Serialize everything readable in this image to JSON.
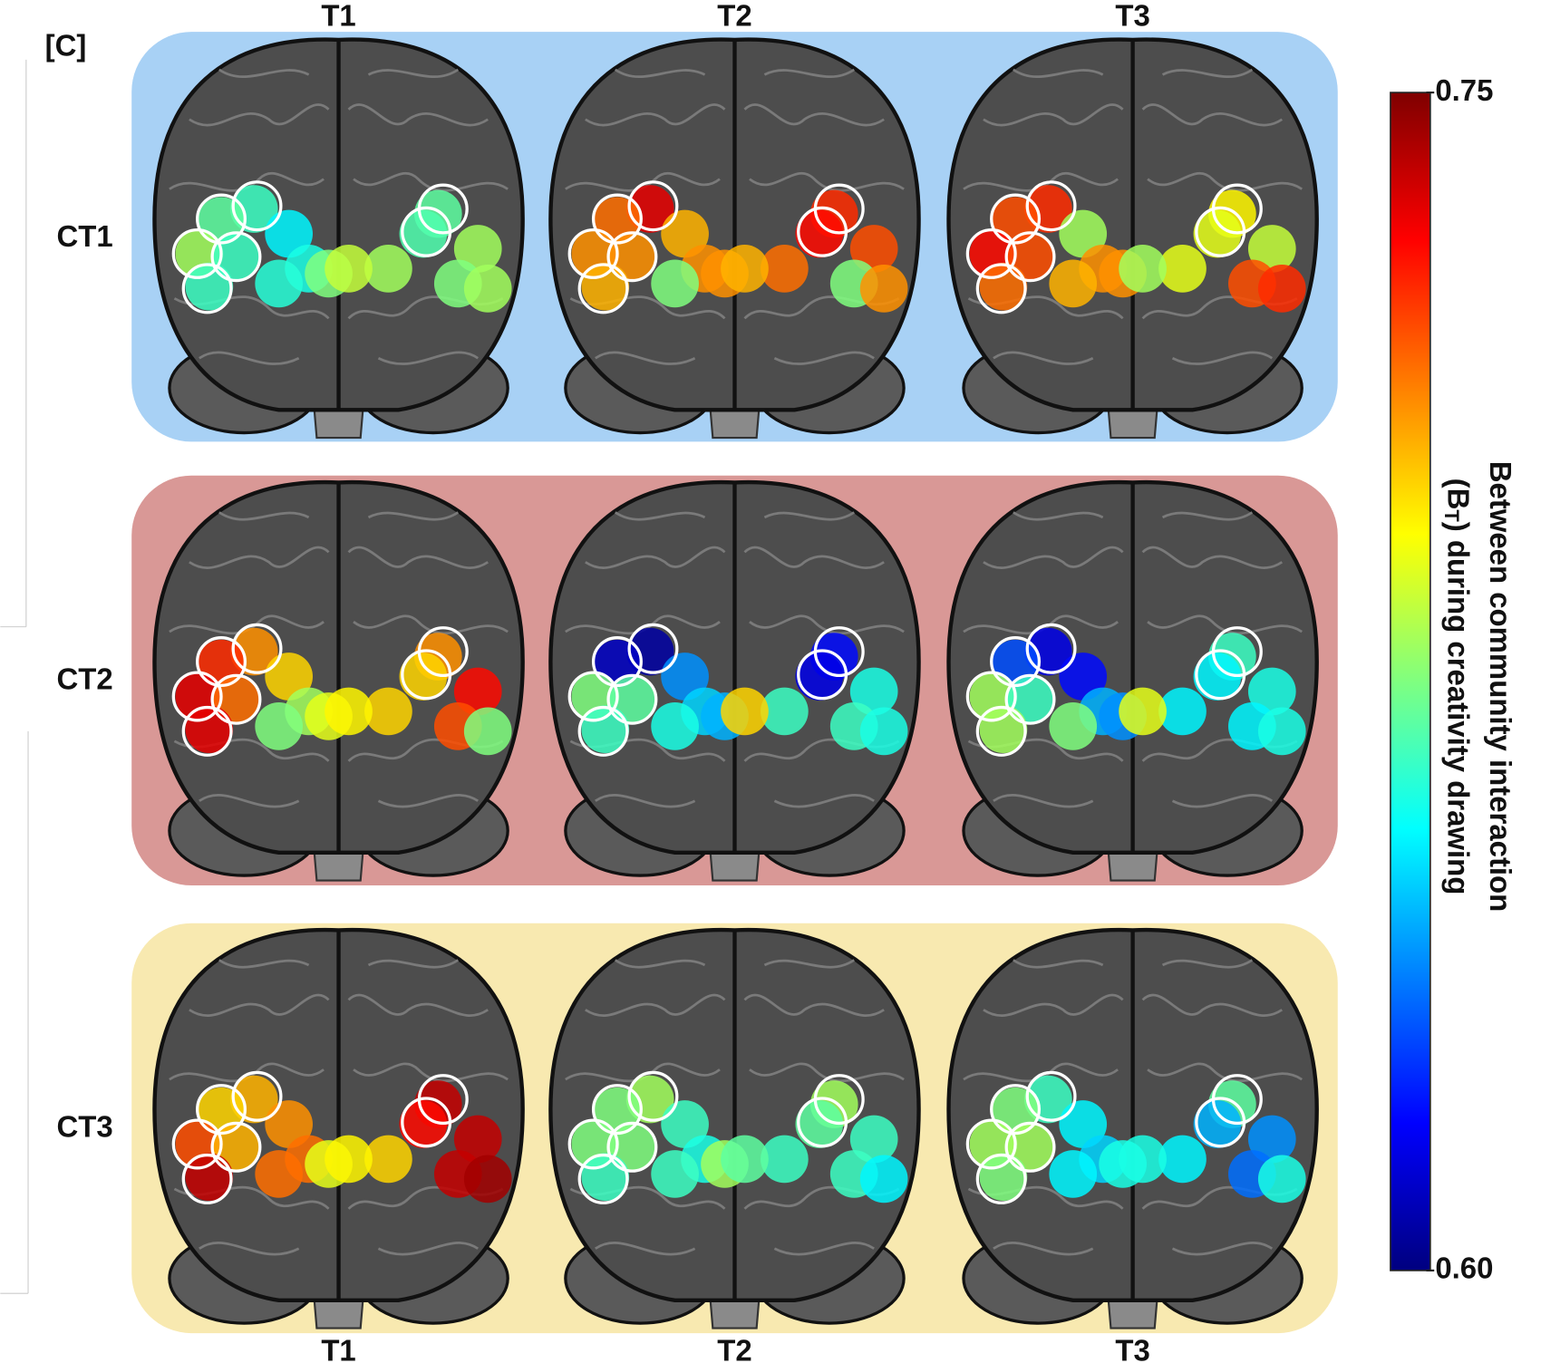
{
  "panel_label": "[C]",
  "columns_top": [
    "T1",
    "T2",
    "T3"
  ],
  "columns_bottom": [
    "T1",
    "T2",
    "T3"
  ],
  "rows": [
    {
      "label": "CT1",
      "color": "#a8d1f5",
      "brains": [
        [
          0.665,
          0.67,
          0.68,
          0.665,
          0.665,
          0.655,
          0.66,
          0.662,
          0.675,
          0.67,
          0.668,
          0.68,
          0.68,
          0.685,
          0.675,
          0.68
        ],
        [
          0.735,
          0.715,
          0.71,
          0.71,
          0.705,
          0.705,
          0.71,
          0.675,
          0.71,
          0.725,
          0.73,
          0.72,
          0.715,
          0.705,
          0.675,
          0.71
        ],
        [
          0.725,
          0.72,
          0.73,
          0.72,
          0.715,
          0.68,
          0.71,
          0.705,
          0.71,
          0.695,
          0.69,
          0.685,
          0.69,
          0.68,
          0.72,
          0.725
        ]
      ]
    },
    {
      "label": "CT2",
      "color": "#d99896",
      "brains": [
        [
          0.71,
          0.725,
          0.735,
          0.715,
          0.735,
          0.7,
          0.68,
          0.675,
          0.69,
          0.71,
          0.7,
          0.73,
          0.7,
          0.695,
          0.72,
          0.675
        ],
        [
          0.605,
          0.61,
          0.675,
          0.67,
          0.665,
          0.64,
          0.65,
          0.66,
          0.645,
          0.62,
          0.615,
          0.66,
          0.665,
          0.7,
          0.665,
          0.66
        ],
        [
          0.615,
          0.63,
          0.68,
          0.665,
          0.68,
          0.62,
          0.645,
          0.675,
          0.64,
          0.665,
          0.655,
          0.66,
          0.655,
          0.69,
          0.655,
          0.66
        ]
      ]
    },
    {
      "label": "CT3",
      "color": "#f8e9b0",
      "brains": [
        [
          0.705,
          0.7,
          0.72,
          0.705,
          0.74,
          0.71,
          0.715,
          0.715,
          0.69,
          0.74,
          0.73,
          0.74,
          0.7,
          0.695,
          0.74,
          0.745
        ],
        [
          0.68,
          0.675,
          0.675,
          0.675,
          0.665,
          0.665,
          0.66,
          0.665,
          0.68,
          0.68,
          0.67,
          0.665,
          0.665,
          0.67,
          0.665,
          0.655
        ],
        [
          0.665,
          0.675,
          0.68,
          0.68,
          0.675,
          0.655,
          0.65,
          0.655,
          0.66,
          0.67,
          0.645,
          0.64,
          0.655,
          0.66,
          0.635,
          0.66
        ]
      ]
    }
  ],
  "colorbar": {
    "colormap": "jet",
    "ticks": [
      {
        "value": 0.6,
        "label": "0.60"
      },
      0.75
    ],
    "label_line1": "Between community interaction",
    "label_line2": [
      "(B",
      "T",
      ") during creativity drawing"
    ]
  }
}
